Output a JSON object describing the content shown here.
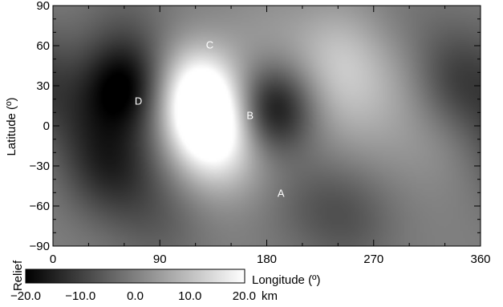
{
  "chart_data": {
    "type": "heatmap",
    "xlabel": "Longitude (º)",
    "ylabel": "Latitude (º)",
    "xlim": [
      0,
      360
    ],
    "ylim": [
      -90,
      90
    ],
    "xticks": [
      0,
      90,
      180,
      270,
      360
    ],
    "yticks": [
      90,
      60,
      30,
      0,
      -30,
      -60,
      -90
    ],
    "colormap": "grayscale",
    "colorbar": {
      "title": "Relief",
      "unit": "km",
      "range": [
        -20.0,
        20.0
      ],
      "ticks": [
        "−20.0",
        "−10.0",
        "0.0",
        "10.0",
        "20.0"
      ]
    },
    "annotations": [
      {
        "label": "A",
        "lon": 192,
        "lat": -50
      },
      {
        "label": "B",
        "lon": 166,
        "lat": 8
      },
      {
        "label": "C",
        "lon": 132,
        "lat": 61
      },
      {
        "label": "D",
        "lon": 72,
        "lat": 19
      }
    ],
    "features": [
      {
        "lon": 185,
        "lat": 12,
        "relief": -20
      },
      {
        "lon": 60,
        "lat": 30,
        "relief": -18
      },
      {
        "lon": 50,
        "lat": -30,
        "relief": -13
      },
      {
        "lon": 340,
        "lat": 35,
        "relief": -10
      },
      {
        "lon": 20,
        "lat": 5,
        "relief": -6
      },
      {
        "lon": 130,
        "lat": 5,
        "relief": 20
      },
      {
        "lon": 120,
        "lat": 30,
        "relief": 16
      },
      {
        "lon": 140,
        "lat": -15,
        "relief": 13
      },
      {
        "lon": 240,
        "lat": 55,
        "relief": 8
      },
      {
        "lon": 245,
        "lat": 20,
        "relief": 5
      },
      {
        "lon": 290,
        "lat": 35,
        "relief": 4
      },
      {
        "lon": 200,
        "lat": -30,
        "relief": 4
      },
      {
        "lon": 320,
        "lat": -10,
        "relief": 3
      },
      {
        "lon": 270,
        "lat": -10,
        "relief": 2
      },
      {
        "lon": 90,
        "lat": -70,
        "relief": -5
      },
      {
        "lon": 250,
        "lat": -70,
        "relief": -6
      },
      {
        "lon": 210,
        "lat": -48,
        "relief": -6
      },
      {
        "lon": 180,
        "lat": 60,
        "relief": 4
      },
      {
        "lon": 60,
        "lat": 75,
        "relief": -4
      },
      {
        "lon": 300,
        "lat": 75,
        "relief": -2
      }
    ]
  }
}
